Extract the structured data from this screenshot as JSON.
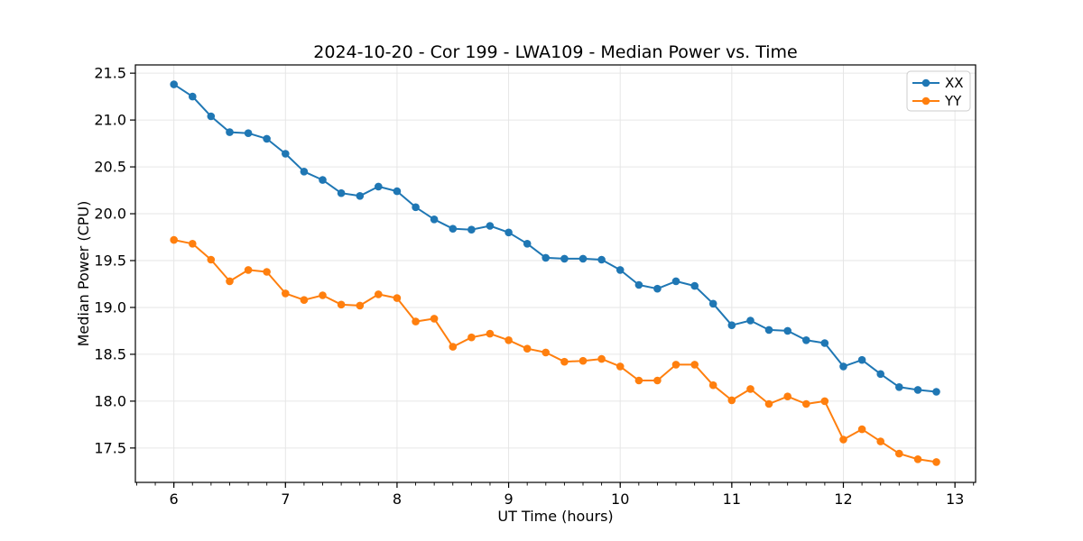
{
  "colors": {
    "background": "#ffffff",
    "grid": "#e6e6e6",
    "spine": "#000000",
    "text": "#000000",
    "legend_border": "#cccccc",
    "legend_background": "#ffffff"
  },
  "chart_data": {
    "type": "line",
    "title": "2024-10-20 - Cor 199 - LWA109 - Median Power vs. Time",
    "xlabel": "UT Time (hours)",
    "ylabel": "Median Power (CPU)",
    "xlim": [
      5.655,
      13.185
    ],
    "ylim": [
      17.133,
      21.588
    ],
    "grid": true,
    "legend_position": "upper right",
    "x_ticks": [
      {
        "v": 6,
        "label": "6"
      },
      {
        "v": 7,
        "label": "7"
      },
      {
        "v": 8,
        "label": "8"
      },
      {
        "v": 9,
        "label": "9"
      },
      {
        "v": 10,
        "label": "10"
      },
      {
        "v": 11,
        "label": "11"
      },
      {
        "v": 12,
        "label": "12"
      },
      {
        "v": 13,
        "label": "13"
      }
    ],
    "y_ticks": [
      {
        "v": 17.5,
        "label": "17.5"
      },
      {
        "v": 18.0,
        "label": "18.0"
      },
      {
        "v": 18.5,
        "label": "18.5"
      },
      {
        "v": 19.0,
        "label": "19.0"
      },
      {
        "v": 19.5,
        "label": "19.5"
      },
      {
        "v": 20.0,
        "label": "20.0"
      },
      {
        "v": 20.5,
        "label": "20.5"
      },
      {
        "v": 21.0,
        "label": "21.0"
      },
      {
        "v": 21.5,
        "label": "21.5"
      }
    ],
    "x_minor_tick_step": 0.1666667,
    "x": [
      6.0,
      6.167,
      6.333,
      6.5,
      6.667,
      6.833,
      7.0,
      7.167,
      7.333,
      7.5,
      7.667,
      7.833,
      8.0,
      8.167,
      8.333,
      8.5,
      8.667,
      8.833,
      9.0,
      9.167,
      9.333,
      9.5,
      9.667,
      9.833,
      10.0,
      10.167,
      10.333,
      10.5,
      10.667,
      10.833,
      11.0,
      11.167,
      11.333,
      11.5,
      11.667,
      11.833,
      12.0,
      12.167,
      12.333,
      12.5,
      12.667,
      12.833
    ],
    "series": [
      {
        "name": "XX",
        "color": "#1f77b4",
        "values": [
          21.38,
          21.25,
          21.04,
          20.87,
          20.86,
          20.8,
          20.64,
          20.45,
          20.36,
          20.22,
          20.19,
          20.29,
          20.24,
          20.07,
          19.94,
          19.84,
          19.83,
          19.87,
          19.8,
          19.68,
          19.53,
          19.52,
          19.52,
          19.51,
          19.4,
          19.24,
          19.2,
          19.28,
          19.23,
          19.04,
          18.81,
          18.86,
          18.76,
          18.75,
          18.65,
          18.62,
          18.37,
          18.44,
          18.29,
          18.15,
          18.12,
          18.1
        ]
      },
      {
        "name": "YY",
        "color": "#ff7f0e",
        "values": [
          19.72,
          19.68,
          19.51,
          19.28,
          19.4,
          19.38,
          19.15,
          19.08,
          19.13,
          19.03,
          19.02,
          19.14,
          19.1,
          18.85,
          18.88,
          18.58,
          18.68,
          18.72,
          18.65,
          18.56,
          18.52,
          18.42,
          18.43,
          18.45,
          18.37,
          18.22,
          18.22,
          18.39,
          18.39,
          18.17,
          18.01,
          18.13,
          17.97,
          18.05,
          17.97,
          18.0,
          17.59,
          17.7,
          17.57,
          17.44,
          17.38,
          17.35
        ]
      }
    ]
  }
}
